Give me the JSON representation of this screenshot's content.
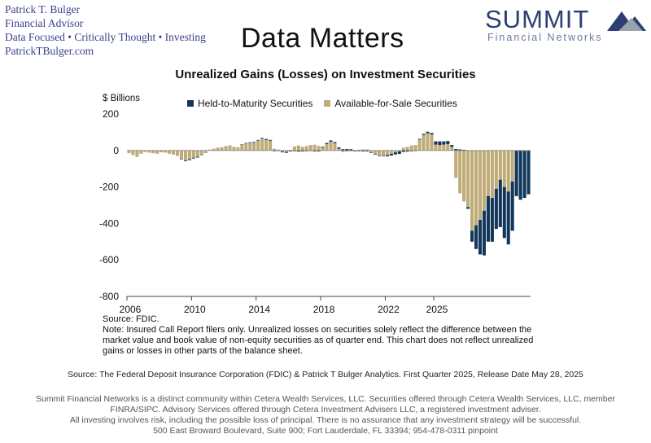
{
  "advisor": {
    "name": "Patrick T. Bulger",
    "role": "Financial Advisor",
    "tagline": "Data Focused • Critically Thought • Investing",
    "website": "PatrickTBulger.com"
  },
  "header": {
    "title": "Data Matters"
  },
  "logo": {
    "word": "SUMMIT",
    "sub": "Financial Networks",
    "colors": [
      "#2b3f74",
      "#9aa0ad"
    ]
  },
  "chart_data": {
    "type": "bar",
    "stacked": true,
    "title": "Unrealized Gains (Losses) on Investment Securities",
    "ylabel": "$ Billions",
    "ylim": [
      -800,
      200
    ],
    "yticks": [
      200,
      0,
      -200,
      -400,
      -600,
      -800
    ],
    "xticks": [
      "2006",
      "2010",
      "2014",
      "2018",
      "2022",
      "2025"
    ],
    "x_start": "2006 Q1",
    "legend_position": "top",
    "grid": false,
    "colors": {
      "htm": "#12375a",
      "afs": "#bfab78"
    },
    "series": [
      {
        "name": "Held-to-Maturity Securities",
        "values": [
          0,
          0,
          0,
          0,
          0,
          0,
          0,
          0,
          0,
          0,
          0,
          0,
          0,
          -3,
          -4,
          -5,
          -4,
          -4,
          -3,
          -2,
          0,
          0,
          0,
          0,
          0,
          0,
          0,
          0,
          2,
          3,
          3,
          3,
          3,
          4,
          5,
          4,
          -4,
          -3,
          -4,
          -5,
          -5,
          -4,
          -6,
          -5,
          -4,
          -3,
          -5,
          -5,
          5,
          6,
          7,
          6,
          7,
          7,
          8,
          7,
          -3,
          -4,
          -5,
          -5,
          -2,
          -3,
          -3,
          -2,
          -7,
          -10,
          -12,
          -14,
          -8,
          -6,
          -4,
          -3,
          4,
          6,
          8,
          8,
          18,
          20,
          18,
          17,
          10,
          8,
          6,
          4,
          -10,
          -60,
          -130,
          -190,
          -245,
          -250,
          -240,
          -220,
          -260,
          -280,
          -290,
          -270,
          -250,
          -270,
          -260,
          -240
        ]
      },
      {
        "name": "Available-for-Sale Securities",
        "values": [
          -15,
          -25,
          -35,
          -18,
          -8,
          -12,
          -15,
          -18,
          -10,
          -12,
          -18,
          -22,
          -30,
          -45,
          -55,
          -48,
          -40,
          -35,
          -22,
          -10,
          5,
          10,
          15,
          18,
          25,
          28,
          20,
          18,
          32,
          38,
          42,
          45,
          55,
          65,
          58,
          54,
          10,
          5,
          -6,
          -8,
          2,
          22,
          28,
          20,
          24,
          30,
          32,
          25,
          15,
          35,
          48,
          40,
          10,
          -8,
          -6,
          -4,
          -2,
          4,
          6,
          6,
          -12,
          -20,
          -28,
          -30,
          -25,
          -18,
          -10,
          -5,
          15,
          20,
          28,
          30,
          60,
          85,
          95,
          88,
          32,
          30,
          32,
          35,
          20,
          -150,
          -235,
          -280,
          -310,
          -440,
          -410,
          -380,
          -330,
          -250,
          -260,
          -210,
          -160,
          -200,
          -225,
          -170
        ]
      }
    ]
  },
  "notes": {
    "source": "Source: FDIC.",
    "note": "Note: Insured Call Report filers only. Unrealized losses on securities solely reflect the difference between the market value and book value of non-equity securities as of quarter end. This chart does not reflect unrealized gains or losses in other parts of the balance sheet."
  },
  "source_line": "Source: The Federal Deposit Insurance Corporation (FDIC) & Patrick T Bulger Analytics. First Quarter 2025, Release Date May 28, 2025",
  "disclaimer": {
    "line1": "Summit Financial Networks is a distinct community within Cetera Wealth Services, LLC.  Securities offered through Cetera Wealth Services, LLC, member FINRA/SIPC.  Advisory Services offered through Cetera Investment Advisers LLC, a registered investment adviser.",
    "line2": "All investing involves risk, including the possible loss of principal.  There is no assurance that any investment strategy will be successful.",
    "line3": "500 East Broward Boulevard, Suite 900; Fort Lauderdale, FL 33394; 954-478-0311 pinpoint"
  }
}
